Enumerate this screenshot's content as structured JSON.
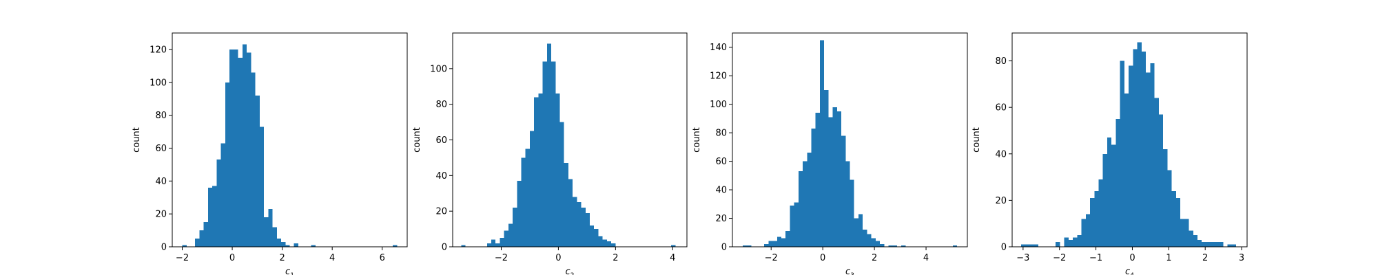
{
  "chart_data": [
    {
      "type": "bar",
      "panel": "c1",
      "xlabel_symbol": "c",
      "xlabel_subscript": "1",
      "ylabel": "count",
      "xlim": [
        -2.4,
        7.0
      ],
      "ylim": [
        0,
        130
      ],
      "xticks": [
        "-2",
        "0",
        "2",
        "4",
        "6"
      ],
      "xtick_values": [
        -2,
        0,
        2,
        4,
        6
      ],
      "yticks": [
        "0",
        "20",
        "40",
        "60",
        "80",
        "100",
        "120"
      ],
      "ytick_values": [
        0,
        20,
        40,
        60,
        80,
        100,
        120
      ],
      "bin_start": -2.0,
      "bin_width": 0.172,
      "values": [
        1,
        0,
        0,
        5,
        10,
        15,
        36,
        37,
        53,
        63,
        100,
        120,
        120,
        115,
        123,
        118,
        106,
        92,
        73,
        18,
        23,
        12,
        5,
        3,
        1,
        0,
        2,
        0,
        0,
        0,
        1,
        0,
        0,
        0,
        0,
        0,
        0,
        0,
        0,
        0,
        0,
        0,
        0,
        0,
        0,
        0,
        0,
        0,
        0,
        1
      ]
    },
    {
      "type": "bar",
      "panel": "c2",
      "xlabel_symbol": "c",
      "xlabel_subscript": "2",
      "ylabel": "count",
      "xlim": [
        -3.7,
        4.5
      ],
      "ylim": [
        0,
        120
      ],
      "xticks": [
        "-2",
        "0",
        "2",
        "4"
      ],
      "xtick_values": [
        -2,
        0,
        2,
        4
      ],
      "yticks": [
        "0",
        "20",
        "40",
        "60",
        "80",
        "100"
      ],
      "ytick_values": [
        0,
        20,
        40,
        60,
        80,
        100
      ],
      "bin_start": -3.4,
      "bin_width": 0.15,
      "values": [
        1,
        0,
        0,
        0,
        0,
        0,
        2,
        4,
        2,
        5,
        9,
        13,
        22,
        37,
        50,
        55,
        65,
        84,
        86,
        104,
        114,
        104,
        86,
        70,
        47,
        38,
        28,
        25,
        22,
        19,
        12,
        10,
        6,
        4,
        3,
        2,
        0,
        0,
        0,
        0,
        0,
        0,
        0,
        0,
        0,
        0,
        0,
        0,
        0,
        1
      ]
    },
    {
      "type": "bar",
      "panel": "c3",
      "xlabel_symbol": "c",
      "xlabel_subscript": "3",
      "ylabel": "count",
      "xlim": [
        -3.5,
        5.6
      ],
      "ylim": [
        0,
        150
      ],
      "xticks": [
        "-2",
        "0",
        "2",
        "4"
      ],
      "xtick_values": [
        -2,
        0,
        2,
        4
      ],
      "yticks": [
        "0",
        "20",
        "40",
        "60",
        "80",
        "100",
        "120",
        "140"
      ],
      "ytick_values": [
        0,
        20,
        40,
        60,
        80,
        100,
        120,
        140
      ],
      "bin_start": -3.1,
      "bin_width": 0.166,
      "values": [
        1,
        1,
        0,
        0,
        0,
        2,
        4,
        4,
        7,
        6,
        11,
        29,
        31,
        53,
        60,
        66,
        83,
        94,
        145,
        110,
        91,
        98,
        95,
        78,
        60,
        47,
        20,
        23,
        12,
        9,
        6,
        4,
        2,
        0,
        1,
        1,
        0,
        1,
        0,
        0,
        0,
        0,
        0,
        0,
        0,
        0,
        0,
        0,
        0,
        1
      ]
    },
    {
      "type": "bar",
      "panel": "c4",
      "xlabel_symbol": "c",
      "xlabel_subscript": "4",
      "ylabel": "count",
      "xlim": [
        -3.3,
        3.15
      ],
      "ylim": [
        0,
        92
      ],
      "xticks": [
        "-3",
        "-2",
        "-1",
        "0",
        "1",
        "2",
        "3"
      ],
      "xtick_values": [
        -3,
        -2,
        -1,
        0,
        1,
        2,
        3
      ],
      "yticks": [
        "0",
        "20",
        "40",
        "60",
        "80"
      ],
      "ytick_values": [
        0,
        20,
        40,
        60,
        80
      ],
      "bin_start": -3.05,
      "bin_width": 0.118,
      "values": [
        1,
        1,
        1,
        1,
        0,
        0,
        0,
        0,
        2,
        0,
        4,
        3,
        4,
        5,
        12,
        14,
        21,
        24,
        29,
        40,
        47,
        44,
        55,
        80,
        66,
        78,
        85,
        88,
        84,
        75,
        79,
        64,
        57,
        42,
        33,
        24,
        21,
        12,
        12,
        7,
        5,
        3,
        2,
        2,
        2,
        2,
        2,
        0,
        1,
        1
      ]
    }
  ]
}
